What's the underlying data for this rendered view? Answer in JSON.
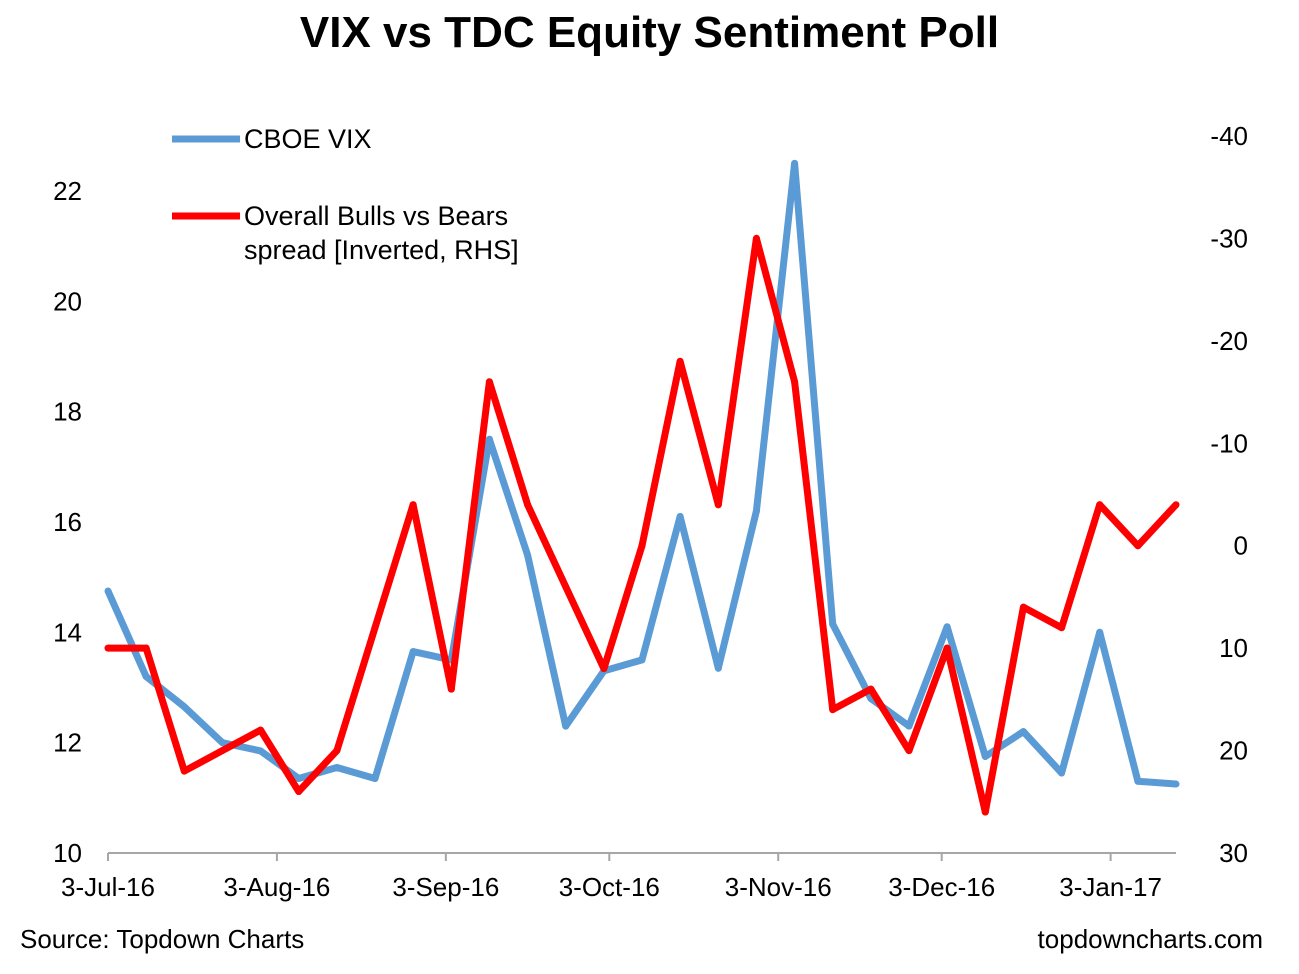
{
  "title": "VIX vs TDC Equity Sentiment Poll",
  "footer": {
    "source": "Source: Topdown Charts",
    "website": "topdowncharts.com"
  },
  "chart_data": {
    "type": "line",
    "title": "VIX vs TDC Equity Sentiment Poll",
    "x_tick_labels": [
      "3-Jul-16",
      "3-Aug-16",
      "3-Sep-16",
      "3-Oct-16",
      "3-Nov-16",
      "3-Dec-16",
      "3-Jan-17"
    ],
    "x_tick_dates": [
      "2016-07-03",
      "2016-08-03",
      "2016-09-03",
      "2016-10-03",
      "2016-11-03",
      "2016-12-03",
      "2017-01-03"
    ],
    "x_range": [
      "2016-07-03",
      "2017-01-15"
    ],
    "y_left": {
      "min": 10,
      "max": 22,
      "ticks": [
        10,
        12,
        14,
        16,
        18,
        20,
        22
      ]
    },
    "y_right": {
      "min": -40,
      "max": 30,
      "inverted": true,
      "ticks": [
        -40,
        -30,
        -20,
        -10,
        0,
        10,
        20,
        30
      ]
    },
    "grid": false,
    "legend_position": "top-left",
    "series": [
      {
        "name": "CBOE VIX",
        "color": "#5b9bd5",
        "axis": "left",
        "x": [
          "2016-07-03",
          "2016-07-10",
          "2016-07-17",
          "2016-07-24",
          "2016-07-31",
          "2016-08-07",
          "2016-08-14",
          "2016-08-21",
          "2016-08-28",
          "2016-09-04",
          "2016-09-11",
          "2016-09-18",
          "2016-09-25",
          "2016-10-02",
          "2016-10-09",
          "2016-10-16",
          "2016-10-23",
          "2016-10-30",
          "2016-11-06",
          "2016-11-13",
          "2016-11-20",
          "2016-11-27",
          "2016-12-04",
          "2016-12-11",
          "2016-12-18",
          "2016-12-25",
          "2017-01-01",
          "2017-01-08",
          "2017-01-15"
        ],
        "values": [
          14.75,
          13.2,
          12.65,
          12.0,
          11.85,
          11.35,
          11.55,
          11.35,
          13.65,
          13.5,
          17.5,
          15.4,
          12.3,
          13.3,
          13.5,
          16.1,
          13.35,
          16.2,
          22.5,
          14.15,
          12.8,
          12.3,
          14.1,
          11.75,
          12.2,
          11.45,
          14.0,
          11.3,
          11.25
        ]
      },
      {
        "name": "Overall Bulls vs Bears spread [Inverted, RHS]",
        "color": "#ff0000",
        "axis": "right",
        "x": [
          "2016-07-03",
          "2016-07-10",
          "2016-07-17",
          "2016-07-24",
          "2016-07-31",
          "2016-08-07",
          "2016-08-14",
          "2016-08-21",
          "2016-08-28",
          "2016-09-04",
          "2016-09-11",
          "2016-09-18",
          "2016-09-25",
          "2016-10-02",
          "2016-10-09",
          "2016-10-16",
          "2016-10-23",
          "2016-10-30",
          "2016-11-06",
          "2016-11-13",
          "2016-11-20",
          "2016-11-27",
          "2016-12-04",
          "2016-12-11",
          "2016-12-18",
          "2016-12-25",
          "2017-01-01",
          "2017-01-08",
          "2017-01-15"
        ],
        "values": [
          10,
          10,
          22,
          20,
          18,
          24,
          20,
          8,
          -4,
          14,
          -16,
          -4,
          4,
          12,
          0,
          -18,
          -4,
          -30,
          -16,
          16,
          14,
          20,
          10,
          26,
          6,
          8,
          -4,
          0,
          -4
        ]
      }
    ],
    "legend": [
      {
        "label_lines": [
          "CBOE VIX"
        ]
      },
      {
        "label_lines": [
          "Overall Bulls vs Bears",
          "spread [Inverted, RHS]"
        ]
      }
    ]
  }
}
